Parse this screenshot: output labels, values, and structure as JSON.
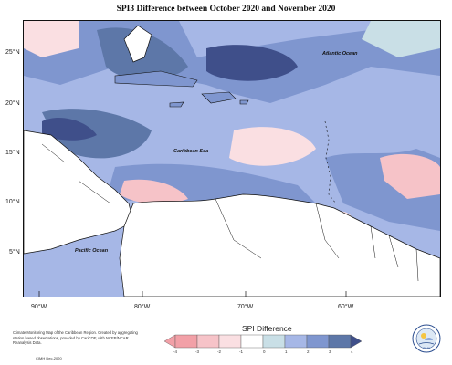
{
  "title": "SPI3 Difference between October 2020 and November 2020",
  "map_labels": {
    "atlantic": "Atlantic Ocean",
    "caribbean": "Caribbean Sea",
    "pacific": "Pacific Ocean"
  },
  "lat_labels": [
    "25°N",
    "20°N",
    "15°N",
    "10°N",
    "5°N"
  ],
  "lon_labels": [
    "90°W",
    "80°W",
    "70°W",
    "60°W"
  ],
  "credits": {
    "text": "Climate Monitoring Map of the Caribbean Region. Created by aggregating station based observations, provided by CariCOF, with NCEP/NCAR Reanalysis Data.",
    "date": "CIMH Dec-2020"
  },
  "legend": {
    "title": "SPI Difference",
    "ticks": [
      "-4",
      "-3",
      "-2",
      "-1",
      "0",
      "1",
      "2",
      "3",
      "4"
    ],
    "colors": [
      "#f2a0a7",
      "#f6c3c8",
      "#fadfe2",
      "#ffffff",
      "#c9dfe6",
      "#a6b7e6",
      "#7f96cf",
      "#5d77a8",
      "#3f4f8a"
    ]
  },
  "palette": {
    "land": "#ffffff",
    "border": "#111111"
  },
  "logo_text": "CIMH"
}
